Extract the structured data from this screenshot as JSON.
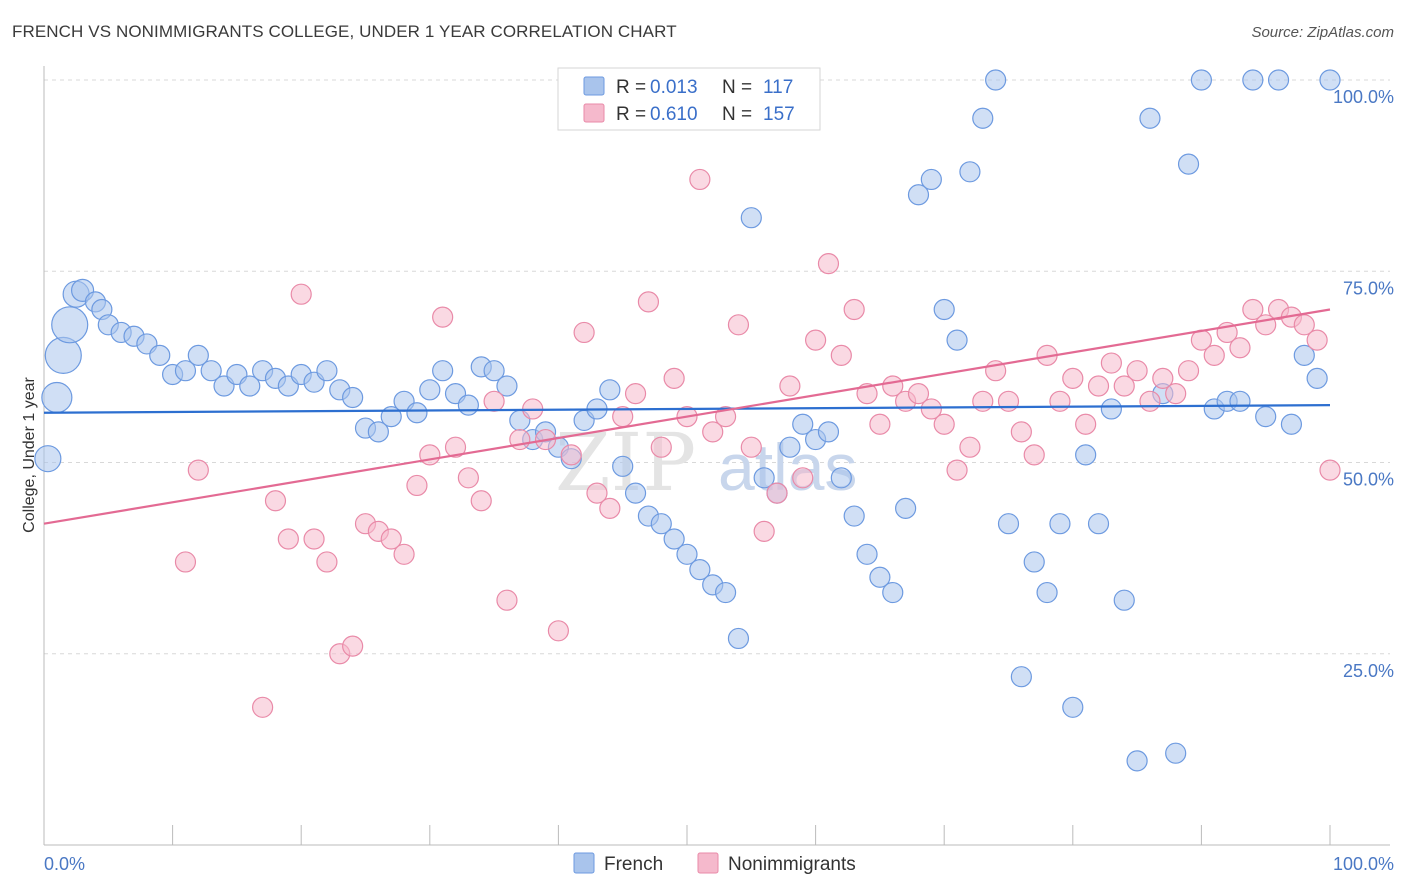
{
  "title": "FRENCH VS NONIMMIGRANTS COLLEGE, UNDER 1 YEAR CORRELATION CHART",
  "source": "Source: ZipAtlas.com",
  "watermark": "ZIPatlas",
  "colors": {
    "french_fill": "#a9c4ec",
    "french_stroke": "#6d9ae0",
    "french_line": "#2d6fd0",
    "nonimm_fill": "#f5b9cc",
    "nonimm_stroke": "#e98aa8",
    "nonimm_line": "#e36a93",
    "grid": "#d8d8d8",
    "tick_text": "#4a78c4"
  },
  "legend": {
    "french": {
      "r_label": "R =",
      "r_value": "0.013",
      "n_label": "N =",
      "n_value": "117"
    },
    "nonimm": {
      "r_label": "R =",
      "r_value": "0.610",
      "n_label": "N =",
      "n_value": "157"
    }
  },
  "chart_data": {
    "type": "scatter",
    "title": "FRENCH VS NONIMMIGRANTS COLLEGE, UNDER 1 YEAR CORRELATION CHART",
    "xlabel": "",
    "ylabel": "College, Under 1 year",
    "xlim": [
      0,
      100
    ],
    "ylim": [
      0,
      100
    ],
    "x_tick_labels": [
      "0.0%",
      "100.0%"
    ],
    "y_tick_labels": [
      "100.0%",
      "75.0%",
      "50.0%",
      "25.0%"
    ],
    "y_ticks": [
      100,
      75,
      50,
      25
    ],
    "grid": true,
    "legend_position": "top-center",
    "series": [
      {
        "name": "French",
        "trend": [
          [
            0,
            56.5
          ],
          [
            100,
            57.5
          ]
        ],
        "points": [
          [
            0.3,
            50.5,
            13
          ],
          [
            1,
            58.5,
            15
          ],
          [
            1.5,
            64,
            18
          ],
          [
            2,
            68,
            18
          ],
          [
            2.5,
            72,
            13
          ],
          [
            3,
            72.5,
            11
          ],
          [
            4,
            71,
            10
          ],
          [
            4.5,
            70,
            10
          ],
          [
            5,
            68,
            10
          ],
          [
            6,
            67,
            10
          ],
          [
            7,
            66.5,
            10
          ],
          [
            8,
            65.5,
            10
          ],
          [
            9,
            64,
            10
          ],
          [
            10,
            61.5,
            10
          ],
          [
            11,
            62,
            10
          ],
          [
            12,
            64,
            10
          ],
          [
            13,
            62,
            10
          ],
          [
            14,
            60,
            10
          ],
          [
            15,
            61.5,
            10
          ],
          [
            16,
            60,
            10
          ],
          [
            17,
            62,
            10
          ],
          [
            18,
            61,
            10
          ],
          [
            19,
            60,
            10
          ],
          [
            20,
            61.5,
            10
          ],
          [
            21,
            60.5,
            10
          ],
          [
            22,
            62,
            10
          ],
          [
            23,
            59.5,
            10
          ],
          [
            24,
            58.5,
            10
          ],
          [
            25,
            54.5,
            10
          ],
          [
            26,
            54,
            10
          ],
          [
            27,
            56,
            10
          ],
          [
            28,
            58,
            10
          ],
          [
            29,
            56.5,
            10
          ],
          [
            30,
            59.5,
            10
          ],
          [
            31,
            62,
            10
          ],
          [
            32,
            59,
            10
          ],
          [
            33,
            57.5,
            10
          ],
          [
            34,
            62.5,
            10
          ],
          [
            35,
            62,
            10
          ],
          [
            36,
            60,
            10
          ],
          [
            37,
            55.5,
            10
          ],
          [
            38,
            53,
            10
          ],
          [
            39,
            54,
            10
          ],
          [
            40,
            52,
            10
          ],
          [
            41,
            50.5,
            10
          ],
          [
            42,
            55.5,
            10
          ],
          [
            43,
            57,
            10
          ],
          [
            44,
            59.5,
            10
          ],
          [
            45,
            49.5,
            10
          ],
          [
            46,
            46,
            10
          ],
          [
            47,
            43,
            10
          ],
          [
            48,
            42,
            10
          ],
          [
            49,
            40,
            10
          ],
          [
            50,
            38,
            10
          ],
          [
            51,
            36,
            10
          ],
          [
            52,
            34,
            10
          ],
          [
            53,
            33,
            10
          ],
          [
            54,
            27,
            10
          ],
          [
            55,
            82,
            10
          ],
          [
            56,
            48,
            10
          ],
          [
            57,
            46,
            10
          ],
          [
            58,
            52,
            10
          ],
          [
            59,
            55,
            10
          ],
          [
            60,
            53,
            10
          ],
          [
            61,
            54,
            10
          ],
          [
            62,
            48,
            10
          ],
          [
            63,
            43,
            10
          ],
          [
            64,
            38,
            10
          ],
          [
            65,
            35,
            10
          ],
          [
            66,
            33,
            10
          ],
          [
            67,
            44,
            10
          ],
          [
            68,
            85,
            10
          ],
          [
            69,
            87,
            10
          ],
          [
            70,
            70,
            10
          ],
          [
            71,
            66,
            10
          ],
          [
            72,
            88,
            10
          ],
          [
            73,
            95,
            10
          ],
          [
            74,
            100,
            10
          ],
          [
            75,
            42,
            10
          ],
          [
            76,
            22,
            10
          ],
          [
            77,
            37,
            10
          ],
          [
            78,
            33,
            10
          ],
          [
            79,
            42,
            10
          ],
          [
            80,
            18,
            10
          ],
          [
            81,
            51,
            10
          ],
          [
            82,
            42,
            10
          ],
          [
            83,
            57,
            10
          ],
          [
            84,
            32,
            10
          ],
          [
            85,
            11,
            10
          ],
          [
            86,
            95,
            10
          ],
          [
            87,
            59,
            10
          ],
          [
            88,
            12,
            10
          ],
          [
            89,
            89,
            10
          ],
          [
            90,
            100,
            10
          ],
          [
            91,
            57,
            10
          ],
          [
            92,
            58,
            10
          ],
          [
            93,
            58,
            10
          ],
          [
            94,
            100,
            10
          ],
          [
            95,
            56,
            10
          ],
          [
            96,
            100,
            10
          ],
          [
            97,
            55,
            10
          ],
          [
            98,
            64,
            10
          ],
          [
            99,
            61,
            10
          ],
          [
            100,
            100,
            10
          ]
        ]
      },
      {
        "name": "Nonimmigrants",
        "trend": [
          [
            0,
            42
          ],
          [
            100,
            70
          ]
        ],
        "points": [
          [
            11,
            37,
            10
          ],
          [
            12,
            49,
            10
          ],
          [
            17,
            18,
            10
          ],
          [
            18,
            45,
            10
          ],
          [
            19,
            40,
            10
          ],
          [
            20,
            72,
            10
          ],
          [
            21,
            40,
            10
          ],
          [
            22,
            37,
            10
          ],
          [
            23,
            25,
            10
          ],
          [
            24,
            26,
            10
          ],
          [
            25,
            42,
            10
          ],
          [
            26,
            41,
            10
          ],
          [
            27,
            40,
            10
          ],
          [
            28,
            38,
            10
          ],
          [
            29,
            47,
            10
          ],
          [
            30,
            51,
            10
          ],
          [
            31,
            69,
            10
          ],
          [
            32,
            52,
            10
          ],
          [
            33,
            48,
            10
          ],
          [
            34,
            45,
            10
          ],
          [
            35,
            58,
            10
          ],
          [
            36,
            32,
            10
          ],
          [
            37,
            53,
            10
          ],
          [
            38,
            57,
            10
          ],
          [
            39,
            53,
            10
          ],
          [
            40,
            28,
            10
          ],
          [
            41,
            51,
            10
          ],
          [
            42,
            67,
            10
          ],
          [
            43,
            46,
            10
          ],
          [
            44,
            44,
            10
          ],
          [
            45,
            56,
            10
          ],
          [
            46,
            59,
            10
          ],
          [
            47,
            71,
            10
          ],
          [
            48,
            52,
            10
          ],
          [
            49,
            61,
            10
          ],
          [
            50,
            56,
            10
          ],
          [
            51,
            87,
            10
          ],
          [
            52,
            54,
            10
          ],
          [
            53,
            56,
            10
          ],
          [
            54,
            68,
            10
          ],
          [
            55,
            52,
            10
          ],
          [
            56,
            41,
            10
          ],
          [
            57,
            46,
            10
          ],
          [
            58,
            60,
            10
          ],
          [
            59,
            48,
            10
          ],
          [
            60,
            66,
            10
          ],
          [
            61,
            76,
            10
          ],
          [
            62,
            64,
            10
          ],
          [
            63,
            70,
            10
          ],
          [
            64,
            59,
            10
          ],
          [
            65,
            55,
            10
          ],
          [
            66,
            60,
            10
          ],
          [
            67,
            58,
            10
          ],
          [
            68,
            59,
            10
          ],
          [
            69,
            57,
            10
          ],
          [
            70,
            55,
            10
          ],
          [
            71,
            49,
            10
          ],
          [
            72,
            52,
            10
          ],
          [
            73,
            58,
            10
          ],
          [
            74,
            62,
            10
          ],
          [
            75,
            58,
            10
          ],
          [
            76,
            54,
            10
          ],
          [
            77,
            51,
            10
          ],
          [
            78,
            64,
            10
          ],
          [
            79,
            58,
            10
          ],
          [
            80,
            61,
            10
          ],
          [
            81,
            55,
            10
          ],
          [
            82,
            60,
            10
          ],
          [
            83,
            63,
            10
          ],
          [
            84,
            60,
            10
          ],
          [
            85,
            62,
            10
          ],
          [
            86,
            58,
            10
          ],
          [
            87,
            61,
            10
          ],
          [
            88,
            59,
            10
          ],
          [
            89,
            62,
            10
          ],
          [
            90,
            66,
            10
          ],
          [
            91,
            64,
            10
          ],
          [
            92,
            67,
            10
          ],
          [
            93,
            65,
            10
          ],
          [
            94,
            70,
            10
          ],
          [
            95,
            68,
            10
          ],
          [
            96,
            70,
            10
          ],
          [
            97,
            69,
            10
          ],
          [
            98,
            68,
            10
          ],
          [
            99,
            66,
            10
          ],
          [
            100,
            49,
            10
          ]
        ]
      }
    ]
  },
  "bottom_legend": [
    "French",
    "Nonimmigrants"
  ]
}
